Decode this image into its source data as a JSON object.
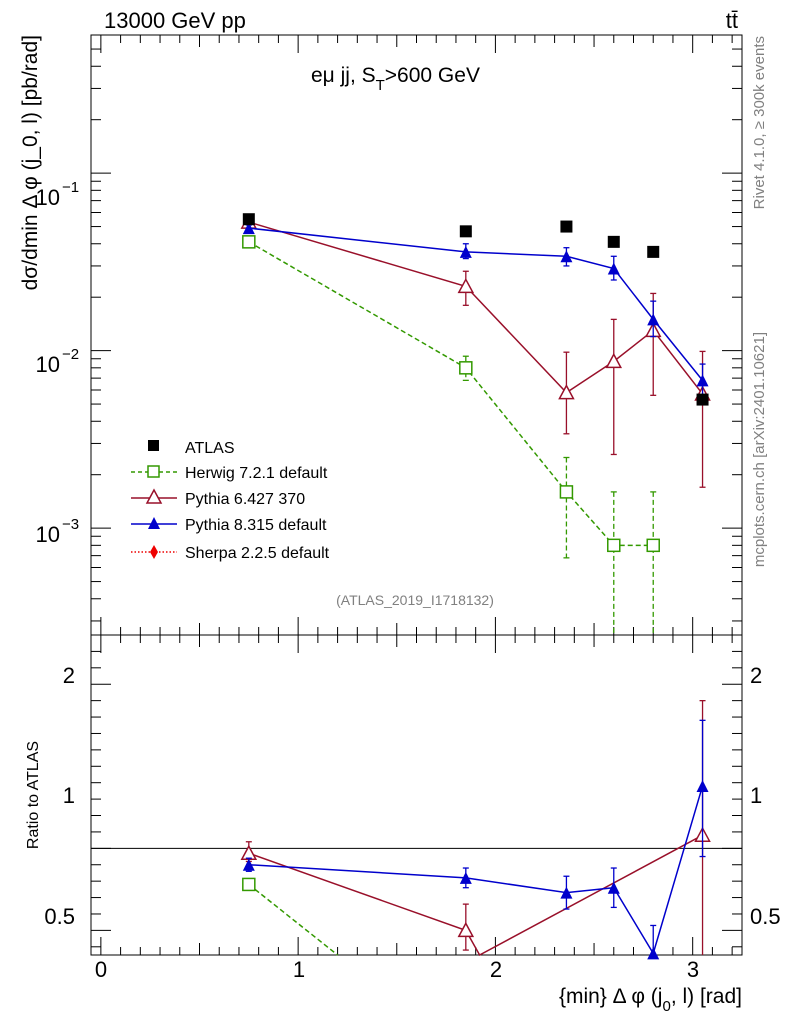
{
  "header": {
    "left": "13000 GeV pp",
    "right": "tt̄"
  },
  "side_labels": {
    "rivet": "Rivet 4.1.0, ≥ 300k events",
    "mcplots": "mcplots.cern.ch [arXiv:2401.10621]"
  },
  "chart_data": [
    {
      "type": "scatter",
      "panel": "main",
      "title": "eμ jj, S_T>600 GeV",
      "title_main": "eμ jj, S",
      "title_sub": "T",
      "title_rest": ">600 GeV",
      "ylabel": "dσ/dmin Δ φ (j_0, l) [pb/rad]",
      "yscale": "log",
      "ylim": [
        0.00025,
        0.6
      ],
      "xlim": [
        -0.05,
        3.25
      ],
      "x_ticks": [
        "0",
        "1",
        "2",
        "3"
      ],
      "y_ticks": [
        {
          "value": 0.1,
          "base": "10",
          "exp": "−1"
        },
        {
          "value": 0.01,
          "base": "10",
          "exp": "−2"
        },
        {
          "value": 0.001,
          "base": "10",
          "exp": "−3"
        }
      ],
      "analysis_label": "(ATLAS_2019_I1718132)",
      "series": [
        {
          "name": "ATLAS",
          "color": "#000000",
          "marker": "square-filled",
          "line": "none",
          "x": [
            0.75,
            1.85,
            2.36,
            2.6,
            2.8,
            3.05
          ],
          "y": [
            0.055,
            0.047,
            0.05,
            0.041,
            0.036,
            0.0053
          ],
          "yerr_low": [
            0.055,
            0.047,
            0.05,
            0.041,
            0.036,
            0.0053
          ],
          "yerr_high": [
            0.055,
            0.047,
            0.05,
            0.041,
            0.036,
            0.0053
          ]
        },
        {
          "name": "Herwig 7.2.1 default",
          "color": "#339900",
          "marker": "square-open",
          "line": "dashed",
          "x": [
            0.75,
            1.85,
            2.36,
            2.6,
            2.8
          ],
          "y": [
            0.041,
            0.008,
            0.0016,
            0.0008,
            0.0008
          ],
          "yerr_low": [
            0.0395,
            0.0068,
            0.00068,
            0.0001,
            0.0001
          ],
          "yerr_high": [
            0.0425,
            0.0093,
            0.0025,
            0.0016,
            0.0016
          ]
        },
        {
          "name": "Pythia 6.427 370",
          "color": "#99102a",
          "marker": "triangle-open",
          "line": "solid",
          "x": [
            0.75,
            1.85,
            2.36,
            2.6,
            2.8,
            3.05
          ],
          "y": [
            0.053,
            0.023,
            0.0058,
            0.0087,
            0.013,
            0.0057
          ],
          "yerr_low": [
            0.05,
            0.018,
            0.0034,
            0.0026,
            0.0056,
            0.0017
          ],
          "yerr_high": [
            0.056,
            0.028,
            0.0098,
            0.015,
            0.021,
            0.0099
          ]
        },
        {
          "name": "Pythia 8.315 default",
          "color": "#0000cc",
          "marker": "triangle-filled",
          "line": "solid",
          "x": [
            0.75,
            1.85,
            2.36,
            2.6,
            2.8,
            3.05
          ],
          "y": [
            0.049,
            0.036,
            0.034,
            0.029,
            0.015,
            0.0068
          ],
          "yerr_low": [
            0.047,
            0.033,
            0.03,
            0.025,
            0.012,
            0.0055
          ],
          "yerr_high": [
            0.051,
            0.04,
            0.038,
            0.034,
            0.019,
            0.0084
          ]
        },
        {
          "name": "Sherpa 2.2.5 default",
          "color": "#ee0000",
          "marker": "diamond-filled",
          "line": "dotted",
          "x": [],
          "y": []
        }
      ]
    },
    {
      "type": "scatter",
      "panel": "ratio",
      "ylabel": "Ratio to ATLAS",
      "xlabel": "{min} Δ φ (j_0, l) [rad]",
      "xlabel_main": "{min} Δ φ (j",
      "xlabel_sub": "0",
      "xlabel_rest": ", l) [rad]",
      "ylim": [
        0.35,
        2.3
      ],
      "xlim": [
        -0.05,
        3.25
      ],
      "y_ticks": [
        "0.5",
        "1",
        "2"
      ],
      "x_ticks": [
        "0",
        "1",
        "2",
        "3"
      ],
      "series": [
        {
          "name": "Herwig 7.2.1 default",
          "color": "#339900",
          "marker": "square-open",
          "line": "dashed",
          "x": [
            0.75,
            1.2
          ],
          "y": [
            0.78,
            0.35
          ],
          "yerr_low": [
            0.75,
            0.35
          ],
          "yerr_high": [
            0.81,
            0.35
          ],
          "marker_mask": [
            true,
            false
          ]
        },
        {
          "name": "Pythia 6.427 370",
          "color": "#99102a",
          "marker": "triangle-open",
          "line": "solid",
          "x": [
            0.75,
            1.85,
            1.92,
            3.05
          ],
          "y": [
            0.97,
            0.5,
            0.35,
            1.08
          ],
          "yerr_low": [
            0.92,
            0.38,
            0.35,
            0.35
          ],
          "yerr_high": [
            1.04,
            0.66,
            0.35,
            1.9
          ],
          "marker_mask": [
            true,
            true,
            false,
            true
          ]
        },
        {
          "name": "Pythia 8.315 default",
          "color": "#0000cc",
          "marker": "triangle-filled",
          "line": "solid",
          "x": [
            0.75,
            1.85,
            2.36,
            2.6,
            2.8,
            3.05
          ],
          "y": [
            0.9,
            0.82,
            0.73,
            0.76,
            0.36,
            1.38
          ],
          "yerr_low": [
            0.86,
            0.76,
            0.63,
            0.64,
            0.35,
            0.95
          ],
          "yerr_high": [
            0.94,
            0.88,
            0.83,
            0.88,
            0.53,
            1.78
          ]
        }
      ]
    }
  ]
}
